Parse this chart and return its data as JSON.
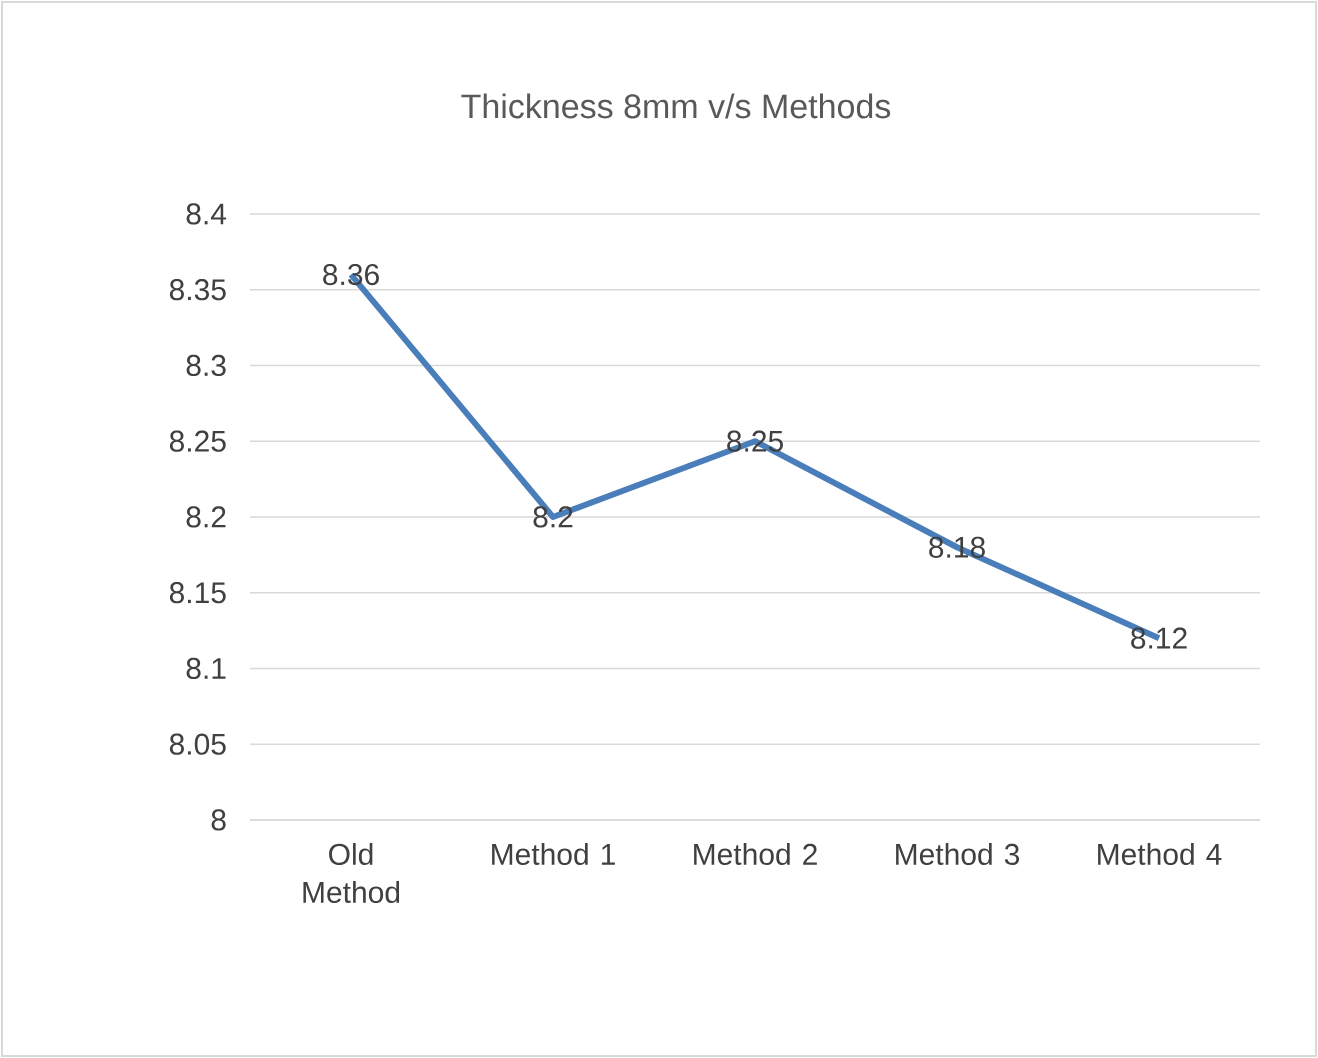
{
  "chart_data": {
    "type": "line",
    "title": "Thickness 8mm v/s Methods",
    "categories": [
      "Old Method",
      "Method 1",
      "Method 2",
      "Method 3",
      "Method 4"
    ],
    "series": [
      {
        "color": "#4a7ebb",
        "values": [
          8.36,
          8.2,
          8.25,
          8.18,
          8.12
        ]
      }
    ],
    "ylim": [
      8,
      8.4
    ],
    "yticks": [
      8,
      8.05,
      8.1,
      8.15,
      8.2,
      8.25,
      8.3,
      8.35,
      8.4
    ],
    "grid": "y",
    "data_labels": true,
    "marker": "none",
    "line_style": "solid"
  }
}
